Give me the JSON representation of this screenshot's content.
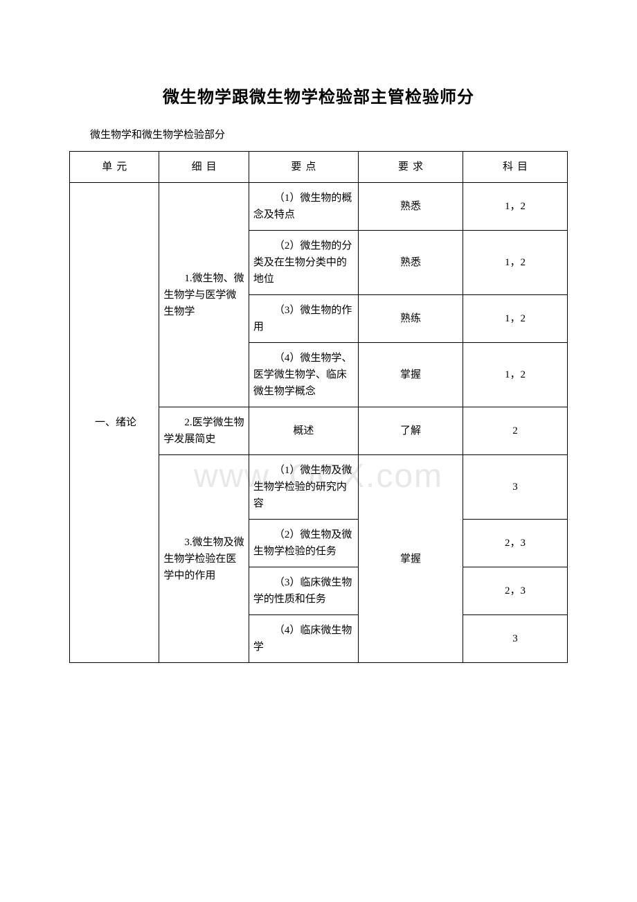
{
  "title": "微生物学跟微生物学检验部主管检验师分",
  "subtitle": "微生物学和微生物学检验部分",
  "watermark": "www.        OCX.com",
  "headers": {
    "unit": "单元",
    "detail": "细目",
    "point": "要点",
    "req": "要求",
    "subject": "科目"
  },
  "rows": [
    {
      "unit": "一、绪论",
      "detail": "1.微生物、微生物学与医学微生物学",
      "point": "（1）微生物的概念及特点",
      "req": "熟悉",
      "subject": "1，2"
    },
    {
      "point": "（2）微生物的分类及在生物分类中的地位",
      "req": "熟悉",
      "subject": "1，2"
    },
    {
      "point": "（3）微生物的作用",
      "req": "熟练",
      "subject": "1，2"
    },
    {
      "point": "（4）微生物学、医学微生物学、临床微生物学概念",
      "req": "掌握",
      "subject": "1，2"
    },
    {
      "detail": "2.医学微生物学发展简史",
      "point": "概述",
      "req": "了解",
      "subject": "2"
    },
    {
      "detail": "3.微生物及微生物学检验在医学中的作用",
      "point": "（1）微生物及微生物学检验的研究内容",
      "req": "掌握",
      "subject": "3"
    },
    {
      "point": "（2）微生物及微生物学检验的任务",
      "subject": "2，3"
    },
    {
      "point": "（3）临床微生物学的性质和任务",
      "subject": "2，3"
    },
    {
      "point": "（4）临床微生物学",
      "subject": "3"
    }
  ]
}
